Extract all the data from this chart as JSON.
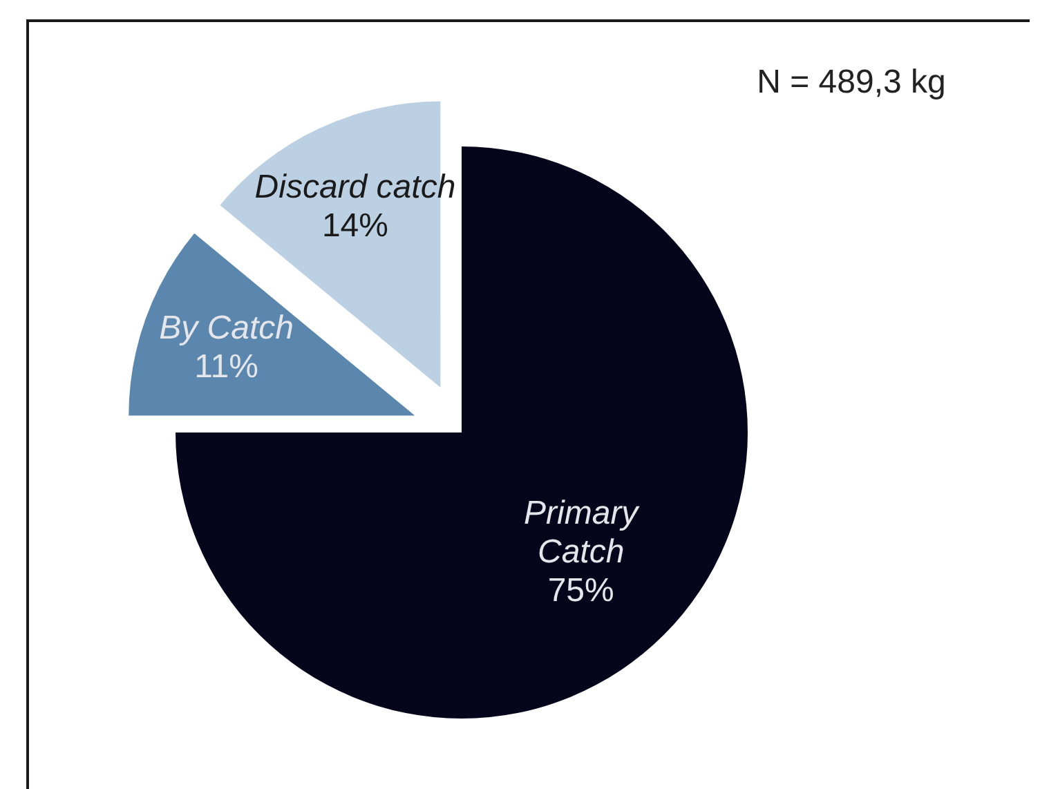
{
  "chart_data": {
    "type": "pie",
    "categories": [
      "Primary Catch",
      "By Catch",
      "Discard catch"
    ],
    "values": [
      75,
      11,
      14
    ],
    "colors": [
      "#05051c",
      "#5b86ad",
      "#bcd0e3"
    ],
    "value_labels": [
      "75%",
      "11%",
      "14%"
    ],
    "annotations": [
      "N = 489,3 kg"
    ]
  }
}
